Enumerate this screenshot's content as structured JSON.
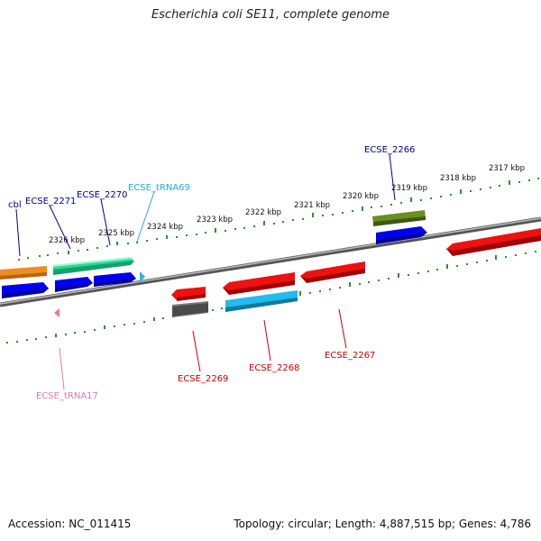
{
  "title": "Escherichia coli SE11, complete genome",
  "footer": {
    "accession": "Accession: NC_011415",
    "summary": "Topology: circular; Length: 4,887,515 bp; Genes: 4,786"
  },
  "colors": {
    "tick": "#2f8f2f",
    "forward_label": "#00008b",
    "reverse_label": "#cc0000",
    "trna_forward_label": "#22aadd",
    "trna_reverse_label": "#e07aa8",
    "backbone": "#777777",
    "orange": "#f28c1e",
    "blue": "#0000ee",
    "teal": "#22dd99",
    "red": "#ee1111",
    "cyan": "#22bbee",
    "olive": "#6b8e23",
    "gray": "#555555",
    "pink": "#e07aa8"
  },
  "kbp_labels": [
    "2326 kbp",
    "2325 kbp",
    "2324 kbp",
    "2323 kbp",
    "2322 kbp",
    "2321 kbp",
    "2320 kbp",
    "2319 kbp",
    "2318 kbp",
    "2317 kbp"
  ],
  "gene_labels": {
    "cbl": "cbl",
    "ecse_2271": "ECSE_2271",
    "ecse_2270": "ECSE_2270",
    "ecse_trna69": "ECSE_tRNA69",
    "ecse_2266": "ECSE_2266",
    "ecse_2269": "ECSE_2269",
    "ecse_2268": "ECSE_2268",
    "ecse_2267": "ECSE_2267",
    "ecse_trna17": "ECSE_tRNA17"
  }
}
